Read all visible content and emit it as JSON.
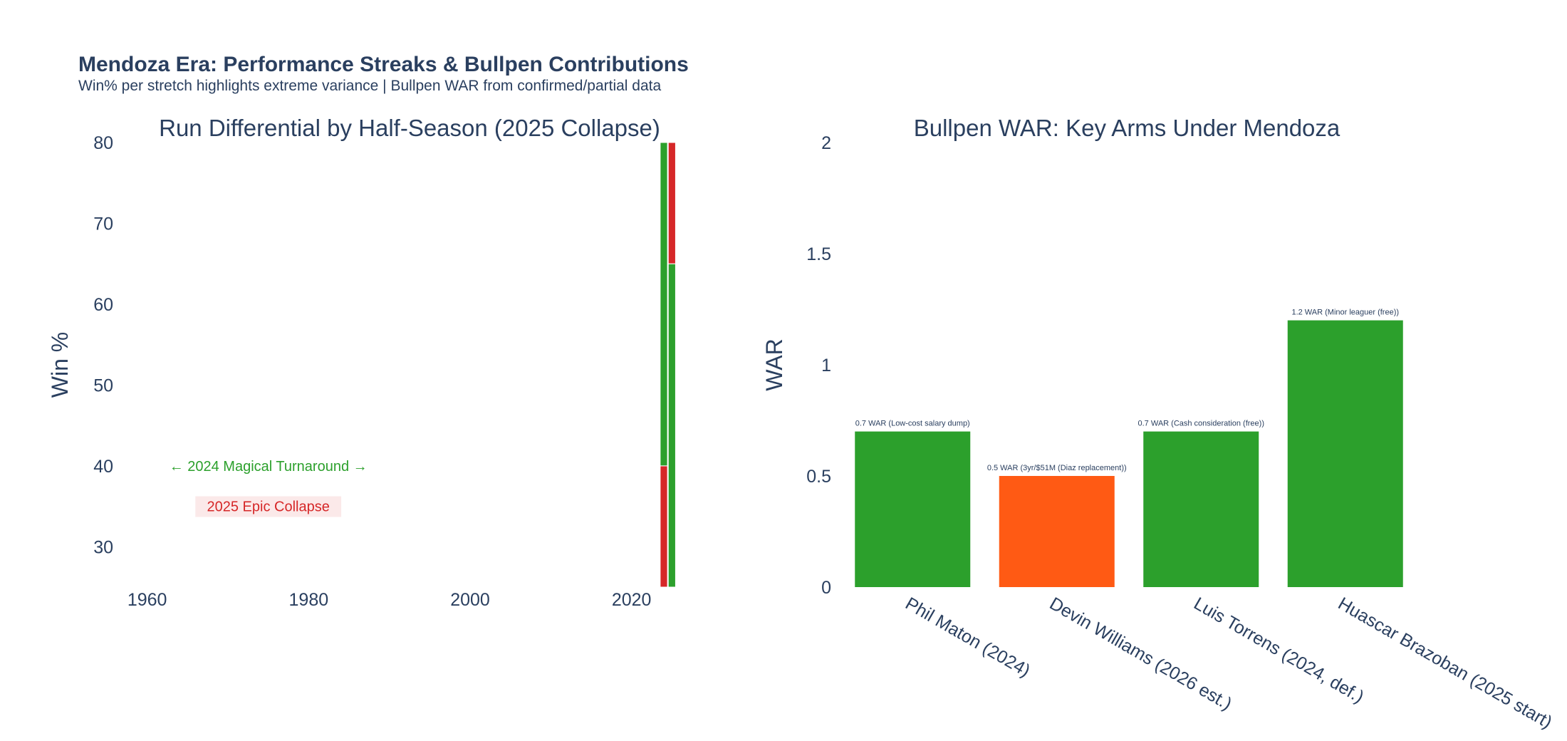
{
  "header": {
    "title": "Mendoza Era: Performance Streaks & Bullpen Contributions",
    "subtitle": "Win% per stretch highlights extreme variance | Bullpen WAR from confirmed/partial data"
  },
  "colors": {
    "green": "#2ca02c",
    "red": "#d62728",
    "orange": "#ff5a14",
    "text": "#2a3f5f"
  },
  "chart_data": [
    {
      "type": "bar",
      "title": "Run Differential by Half-Season (2025 Collapse)",
      "xlabel": "",
      "ylabel": "Win %",
      "xlim": [
        1955,
        2030
      ],
      "ylim": [
        25,
        80
      ],
      "x_ticks": [
        "1960",
        "1980",
        "2000",
        "2020"
      ],
      "y_ticks": [
        "30",
        "40",
        "50",
        "60",
        "70",
        "80"
      ],
      "bar_width_years": 0.9,
      "bars": [
        {
          "x": 2024,
          "base": 25,
          "value": 40,
          "color": "#d62728"
        },
        {
          "x": 2024,
          "base": 40,
          "value": 80,
          "color": "#2ca02c"
        },
        {
          "x": 2025,
          "base": 25,
          "value": 65,
          "color": "#2ca02c"
        },
        {
          "x": 2025,
          "base": 65,
          "value": 80,
          "color": "#d62728"
        }
      ],
      "annotations": [
        {
          "text": "← 2024 Magical Turnaround →",
          "x": 1975,
          "y": 40,
          "color": "#2ca02c",
          "bg": "none"
        },
        {
          "text": "2025 Epic Collapse",
          "x": 1975,
          "y": 35,
          "color": "#d62728",
          "bg": "#fbe9e9"
        }
      ],
      "grid": false
    },
    {
      "type": "bar",
      "title": "Bullpen WAR: Key Arms Under Mendoza",
      "xlabel": "",
      "ylabel": "WAR",
      "ylim": [
        0,
        2
      ],
      "y_ticks": [
        "0",
        "0.5",
        "1",
        "1.5",
        "2"
      ],
      "categories": [
        "Phil Maton (2024)",
        "Devin Williams (2026 est.)",
        "Luis Torrens (2024, def.)",
        "Huascar Brazoban (2025 start)"
      ],
      "values": [
        0.7,
        0.5,
        0.7,
        1.2
      ],
      "bar_colors": [
        "#2ca02c",
        "#ff5a14",
        "#2ca02c",
        "#2ca02c"
      ],
      "data_labels": [
        "0.7 WAR (Low-cost salary dump)",
        "0.5 WAR (3yr/$51M (Diaz replacement))",
        "0.7 WAR (Cash consideration (free))",
        "1.2 WAR (Minor leaguer (free))"
      ],
      "grid": false
    }
  ]
}
